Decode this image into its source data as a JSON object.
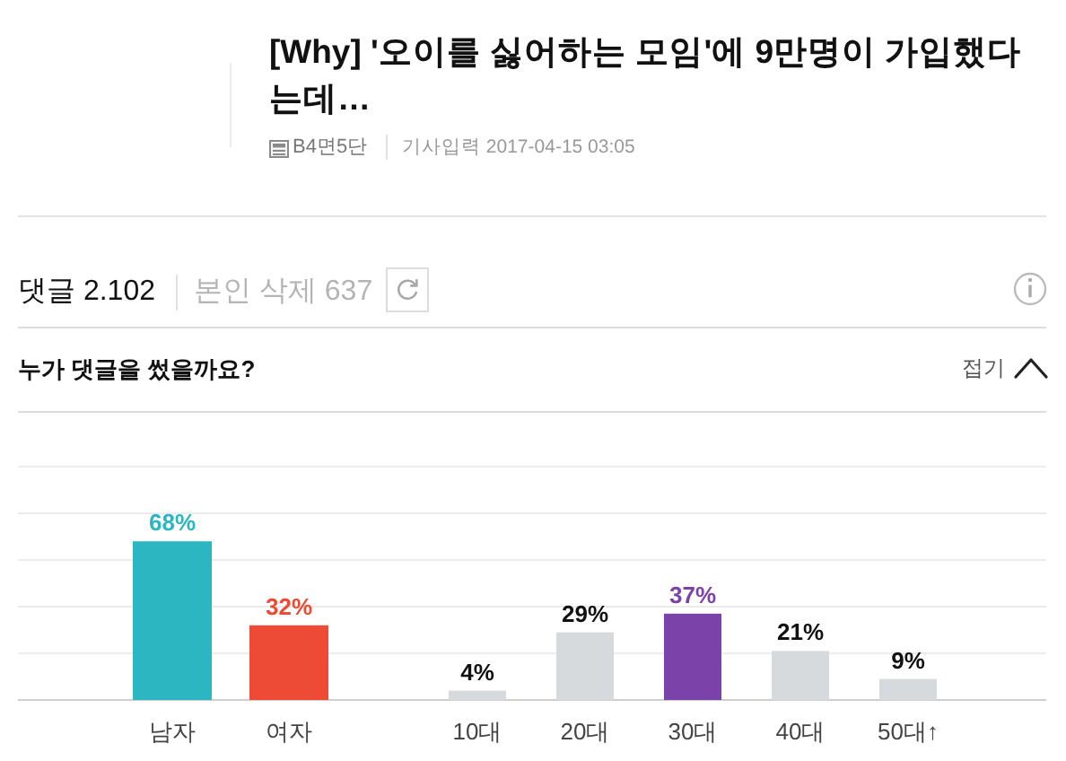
{
  "chart_data": [
    {
      "type": "bar",
      "title": "누가 댓글을 썼을까요?",
      "categories": [
        "남자",
        "여자"
      ],
      "values": [
        68,
        32
      ],
      "colors": [
        "#2cb6c1",
        "#ee4b36"
      ],
      "value_labels": [
        "68%",
        "32%"
      ],
      "ylim": [
        0,
        100
      ],
      "yticks": [
        {
          "value": 0,
          "label": null
        },
        {
          "value": 20,
          "label": null
        },
        {
          "value": 40,
          "label": null
        },
        {
          "value": 60,
          "label": null
        },
        {
          "value": 80,
          "label": null
        },
        {
          "value": 100,
          "label": null
        }
      ],
      "grid": "y",
      "tick_labels": "x",
      "annotations": [
        "[Why] '오이를 싫어하는 모임'에 9만명이 가입했다는데…",
        "B4면5단",
        "기사입력 2017-04-15 03:05",
        "댓글 2.102",
        "본인 삭제 637",
        "접기"
      ]
    },
    {
      "type": "bar",
      "categories": [
        "10대",
        "20대",
        "30대",
        "40대",
        "50대↑"
      ],
      "values": [
        4,
        29,
        37,
        21,
        9
      ],
      "colors": [
        "#d6dadd",
        "#d6dadd",
        "#7b43a9",
        "#d6dadd",
        "#d6dadd"
      ],
      "value_labels": [
        "4%",
        "29%",
        "37%",
        "21%",
        "9%"
      ],
      "ylim": [
        0,
        100
      ],
      "yticks": [
        {
          "value": 0,
          "label": null
        },
        {
          "value": 20,
          "label": null
        },
        {
          "value": 40,
          "label": null
        },
        {
          "value": 60,
          "label": null
        },
        {
          "value": 80,
          "label": null
        },
        {
          "value": 100,
          "label": null
        }
      ],
      "grid": "y",
      "tick_labels": "x"
    }
  ]
}
